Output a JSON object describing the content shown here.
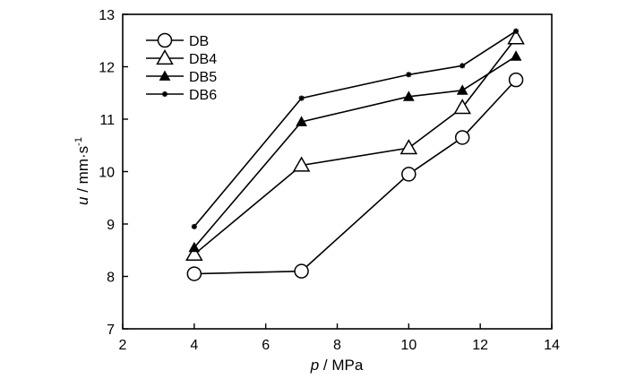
{
  "chart_data": {
    "type": "line",
    "xlabel_var": "p",
    "xlabel_unit": " / MPa",
    "ylabel_var": "u",
    "ylabel_unit": " / mm·s",
    "ylabel_sup": "-1",
    "xlim": [
      2,
      14
    ],
    "ylim": [
      7,
      13
    ],
    "xticks": [
      2,
      4,
      6,
      8,
      10,
      12,
      14
    ],
    "yticks": [
      7,
      8,
      9,
      10,
      11,
      12,
      13
    ],
    "legend_position": "top-left",
    "grid": false,
    "series": [
      {
        "name": "DB",
        "marker": "circle-open",
        "x": [
          4,
          7,
          10,
          11.5,
          13
        ],
        "y": [
          8.05,
          8.1,
          9.95,
          10.65,
          11.75
        ]
      },
      {
        "name": "DB4",
        "marker": "triangle-open",
        "x": [
          4,
          7,
          10,
          11.5,
          13
        ],
        "y": [
          8.42,
          10.12,
          10.45,
          11.22,
          12.55
        ]
      },
      {
        "name": "DB5",
        "marker": "triangle-filled",
        "x": [
          4,
          7,
          10,
          11.5,
          13
        ],
        "y": [
          8.55,
          10.95,
          11.43,
          11.55,
          12.2
        ]
      },
      {
        "name": "DB6",
        "marker": "star-small",
        "x": [
          4,
          7,
          10,
          11.5,
          13
        ],
        "y": [
          8.95,
          11.4,
          11.85,
          12.02,
          12.68
        ]
      }
    ]
  }
}
